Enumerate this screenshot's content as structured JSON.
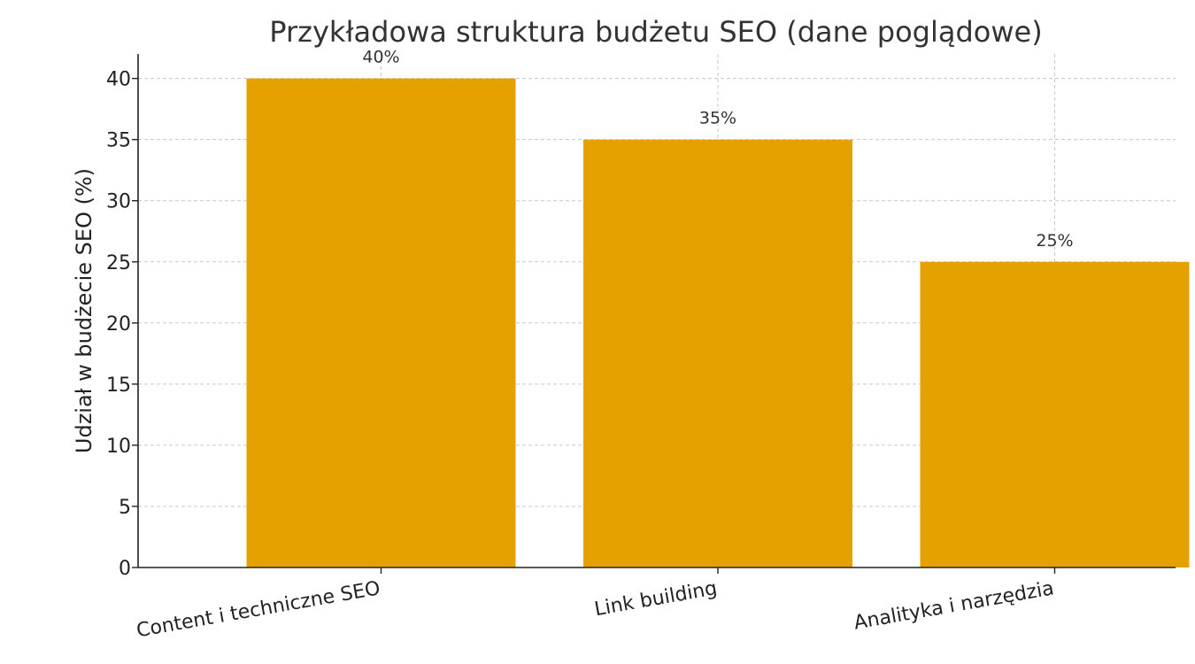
{
  "chart_data": {
    "type": "bar",
    "title": "Przykładowa struktura budżetu SEO (dane poglądowe)",
    "xlabel": "",
    "ylabel": "Udział w budżecie SEO (%)",
    "categories": [
      "Content i techniczne SEO",
      "Link building",
      "Analityka i narzędzia"
    ],
    "values": [
      40,
      35,
      25
    ],
    "data_labels": [
      "40%",
      "35%",
      "25%"
    ],
    "ylim": [
      0,
      42
    ],
    "yticks": [
      0,
      5,
      10,
      15,
      20,
      25,
      30,
      35,
      40
    ],
    "grid": true,
    "bar_color": "#E5A100"
  }
}
